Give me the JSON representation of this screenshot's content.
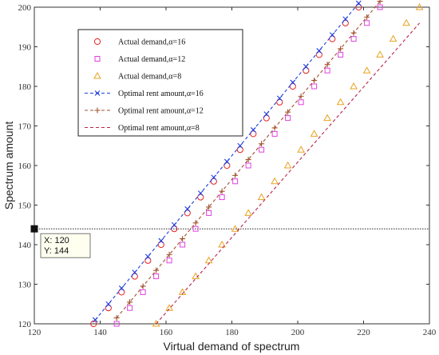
{
  "chart_data": {
    "type": "scatter",
    "title": "",
    "xlabel": "Virtual demand of spectrum",
    "ylabel": "Spectrum amount",
    "xlim": [
      120,
      240
    ],
    "ylim": [
      120,
      200
    ],
    "xticks": [
      120,
      140,
      160,
      180,
      200,
      220,
      240
    ],
    "yticks": [
      120,
      130,
      140,
      150,
      160,
      170,
      180,
      190,
      200
    ],
    "grid": false,
    "legend_position": "top-left",
    "series": [
      {
        "name": "Actual demand,α=16",
        "marker": "circle",
        "color": "#e8201e",
        "x": [
          138.0,
          142.5,
          146.5,
          150.5,
          154.5,
          158.5,
          162.5,
          166.5,
          170.5,
          174.5,
          178.5,
          182.5,
          186.5,
          190.5,
          194.5,
          198.5,
          202.5,
          206.5,
          210.5,
          214.5,
          218.5
        ],
        "y": [
          120,
          124,
          128,
          132,
          136,
          140,
          144,
          148,
          152,
          156,
          160,
          164,
          168,
          172,
          176,
          180,
          184,
          188,
          192,
          196,
          200
        ]
      },
      {
        "name": "Actual demand,α=12",
        "marker": "square",
        "color": "#e040e0",
        "x": [
          145.0,
          149.0,
          153.0,
          157.0,
          161.0,
          165.0,
          169.0,
          173.0,
          177.0,
          181.0,
          185.0,
          189.0,
          193.0,
          197.0,
          201.0,
          205.0,
          209.0,
          213.0,
          217.0,
          221.0,
          225.0
        ],
        "y": [
          120,
          124,
          128,
          132,
          136,
          140,
          144,
          148,
          152,
          156,
          160,
          164,
          168,
          172,
          176,
          180,
          184,
          188,
          192,
          196,
          200
        ]
      },
      {
        "name": "Actual demand,α=8",
        "marker": "triangle",
        "color": "#e8a320",
        "x": [
          157,
          161,
          165,
          169,
          173,
          177,
          181,
          185,
          189,
          193,
          197,
          201,
          205,
          209,
          213,
          217,
          221,
          225,
          229,
          233,
          237
        ],
        "y": [
          120,
          124,
          128,
          132,
          136,
          140,
          144,
          148,
          152,
          156,
          160,
          164,
          168,
          172,
          176,
          180,
          184,
          188,
          192,
          196,
          200
        ]
      },
      {
        "name": "Optimal rent amount,α=16",
        "marker": "x",
        "line": "dashed",
        "color": "#1f3fe0",
        "x": [
          138.5,
          142.5,
          146.5,
          150.5,
          154.5,
          158.5,
          162.5,
          166.5,
          170.5,
          174.5,
          178.5,
          182.5,
          186.5,
          190.5,
          194.5,
          198.5,
          202.5,
          206.5,
          210.5,
          214.5,
          218.5
        ],
        "y": [
          121,
          125,
          129,
          133,
          137,
          141,
          145,
          149,
          153,
          157,
          161,
          165,
          169,
          173,
          177,
          181,
          185,
          189,
          193,
          197,
          201
        ]
      },
      {
        "name": "Optimal rent amount,α=12",
        "marker": "plus",
        "line": "dashed",
        "color": "#a0522d",
        "x": [
          145.0,
          149.0,
          153.0,
          157.0,
          161.0,
          165.0,
          169.0,
          173.0,
          177.0,
          181.0,
          185.0,
          189.0,
          193.0,
          197.0,
          201.0,
          205.0,
          209.0,
          213.0,
          217.0,
          221.0,
          225.0
        ],
        "y": [
          121.5,
          125.5,
          129.5,
          133.5,
          137.5,
          141.5,
          145.5,
          149.5,
          153.5,
          157.5,
          161.5,
          165.5,
          169.5,
          173.5,
          177.5,
          181.5,
          185.5,
          189.5,
          193.5,
          197.5,
          201.5
        ]
      },
      {
        "name": "Optimal rent amount,α=8",
        "marker": "none",
        "line": "dashed",
        "color": "#b8264a",
        "x": [
          157,
          237
        ],
        "y": [
          120,
          196
        ]
      }
    ],
    "annotations": {
      "reference_line_y": 144,
      "datatip": {
        "x_label": "X: 120",
        "y_label": "Y: 144",
        "x": 120,
        "y": 144
      }
    }
  }
}
